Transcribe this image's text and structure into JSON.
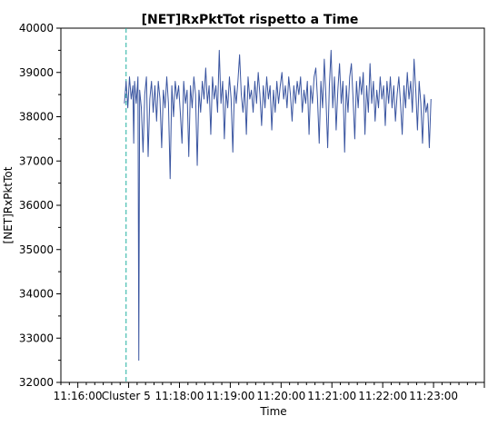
{
  "chart_data": {
    "type": "line",
    "title": "[NET]RxPktTot rispetto a Time",
    "xlabel": "Time",
    "ylabel": "[NET]RxPktTot",
    "ylim": [
      32000,
      40000
    ],
    "xlim": [
      "11:15:40",
      "11:24:00"
    ],
    "y_ticks": [
      32000,
      33000,
      34000,
      35000,
      36000,
      37000,
      38000,
      39000,
      40000
    ],
    "x_ticks": [
      {
        "time": "11:16:00",
        "label": "11:16:00"
      },
      {
        "time": "11:18:00",
        "label": "11:18:00"
      },
      {
        "time": "11:19:00",
        "label": "11:19:00"
      },
      {
        "time": "11:20:00",
        "label": "11:20:00"
      },
      {
        "time": "11:21:00",
        "label": "11:21:00"
      },
      {
        "time": "11:22:00",
        "label": "11:22:00"
      },
      {
        "time": "11:23:00",
        "label": "11:23:00"
      }
    ],
    "grid": false,
    "legend": "none",
    "marker": {
      "time": "11:16:57",
      "label": "Cluster 5",
      "color": "#20b0a0",
      "style": "dashed"
    },
    "series": [
      {
        "color": "#3a55a0",
        "x_start": "11:16:55",
        "x_end": "11:22:57",
        "points": [
          [
            0,
            38300
          ],
          [
            2,
            38800
          ],
          [
            4,
            38200
          ],
          [
            6,
            38900
          ],
          [
            8,
            38400
          ],
          [
            10,
            38700
          ],
          [
            11,
            37400
          ],
          [
            12,
            38800
          ],
          [
            14,
            38300
          ],
          [
            16,
            38900
          ],
          [
            17,
            32500
          ],
          [
            18,
            38600
          ],
          [
            20,
            38200
          ],
          [
            22,
            37200
          ],
          [
            24,
            38500
          ],
          [
            26,
            38900
          ],
          [
            28,
            37100
          ],
          [
            30,
            38400
          ],
          [
            32,
            38800
          ],
          [
            34,
            38100
          ],
          [
            36,
            38700
          ],
          [
            38,
            37900
          ],
          [
            40,
            38800
          ],
          [
            42,
            38400
          ],
          [
            44,
            37300
          ],
          [
            46,
            38600
          ],
          [
            48,
            38200
          ],
          [
            50,
            38900
          ],
          [
            52,
            38300
          ],
          [
            54,
            36600
          ],
          [
            56,
            38700
          ],
          [
            58,
            38000
          ],
          [
            60,
            38800
          ],
          [
            62,
            38400
          ],
          [
            64,
            38700
          ],
          [
            66,
            38100
          ],
          [
            68,
            37400
          ],
          [
            70,
            38800
          ],
          [
            72,
            38300
          ],
          [
            74,
            38600
          ],
          [
            76,
            37100
          ],
          [
            78,
            38700
          ],
          [
            80,
            38200
          ],
          [
            82,
            38900
          ],
          [
            84,
            38500
          ],
          [
            86,
            36900
          ],
          [
            88,
            38600
          ],
          [
            90,
            38100
          ],
          [
            92,
            38800
          ],
          [
            94,
            38400
          ],
          [
            96,
            39100
          ],
          [
            98,
            38300
          ],
          [
            100,
            38700
          ],
          [
            102,
            37600
          ],
          [
            104,
            38900
          ],
          [
            106,
            38400
          ],
          [
            108,
            38700
          ],
          [
            110,
            38100
          ],
          [
            112,
            39500
          ],
          [
            114,
            38300
          ],
          [
            116,
            38800
          ],
          [
            118,
            37500
          ],
          [
            120,
            38600
          ],
          [
            122,
            38200
          ],
          [
            124,
            38900
          ],
          [
            126,
            38400
          ],
          [
            128,
            37200
          ],
          [
            130,
            38700
          ],
          [
            132,
            38300
          ],
          [
            134,
            38800
          ],
          [
            136,
            39400
          ],
          [
            138,
            38500
          ],
          [
            140,
            38100
          ],
          [
            142,
            38700
          ],
          [
            144,
            37600
          ],
          [
            146,
            38900
          ],
          [
            148,
            38400
          ],
          [
            150,
            38600
          ],
          [
            152,
            38100
          ],
          [
            154,
            38800
          ],
          [
            156,
            38300
          ],
          [
            158,
            39000
          ],
          [
            160,
            38500
          ],
          [
            162,
            37800
          ],
          [
            164,
            38700
          ],
          [
            166,
            38200
          ],
          [
            168,
            38900
          ],
          [
            170,
            38400
          ],
          [
            172,
            38700
          ],
          [
            174,
            37700
          ],
          [
            176,
            38600
          ],
          [
            178,
            38100
          ],
          [
            180,
            38800
          ],
          [
            182,
            38300
          ],
          [
            184,
            38700
          ],
          [
            186,
            39000
          ],
          [
            188,
            38400
          ],
          [
            190,
            38700
          ],
          [
            192,
            38200
          ],
          [
            194,
            38900
          ],
          [
            196,
            38500
          ],
          [
            198,
            37900
          ],
          [
            200,
            38700
          ],
          [
            202,
            38300
          ],
          [
            204,
            38800
          ],
          [
            206,
            38500
          ],
          [
            208,
            38900
          ],
          [
            210,
            38100
          ],
          [
            212,
            38600
          ],
          [
            214,
            38300
          ],
          [
            216,
            38800
          ],
          [
            218,
            37600
          ],
          [
            220,
            38700
          ],
          [
            222,
            38300
          ],
          [
            224,
            38900
          ],
          [
            226,
            39100
          ],
          [
            228,
            38400
          ],
          [
            230,
            37400
          ],
          [
            232,
            38800
          ],
          [
            234,
            38200
          ],
          [
            236,
            39300
          ],
          [
            238,
            38400
          ],
          [
            240,
            37300
          ],
          [
            242,
            38700
          ],
          [
            244,
            39500
          ],
          [
            246,
            38200
          ],
          [
            248,
            38900
          ],
          [
            250,
            37700
          ],
          [
            252,
            38600
          ],
          [
            254,
            39200
          ],
          [
            256,
            38300
          ],
          [
            258,
            38800
          ],
          [
            260,
            37200
          ],
          [
            262,
            38700
          ],
          [
            264,
            38100
          ],
          [
            266,
            38900
          ],
          [
            268,
            39200
          ],
          [
            270,
            38400
          ],
          [
            272,
            37500
          ],
          [
            274,
            38800
          ],
          [
            276,
            38200
          ],
          [
            278,
            38900
          ],
          [
            280,
            38500
          ],
          [
            282,
            39000
          ],
          [
            284,
            37600
          ],
          [
            286,
            38700
          ],
          [
            288,
            38100
          ],
          [
            290,
            39200
          ],
          [
            292,
            38300
          ],
          [
            294,
            38800
          ],
          [
            296,
            37900
          ],
          [
            298,
            38600
          ],
          [
            300,
            38200
          ],
          [
            302,
            38900
          ],
          [
            304,
            38400
          ],
          [
            306,
            38700
          ],
          [
            308,
            37800
          ],
          [
            310,
            38800
          ],
          [
            312,
            38300
          ],
          [
            314,
            38900
          ],
          [
            316,
            38200
          ],
          [
            318,
            38700
          ],
          [
            320,
            37900
          ],
          [
            322,
            38500
          ],
          [
            324,
            38900
          ],
          [
            326,
            38300
          ],
          [
            328,
            37600
          ],
          [
            330,
            38700
          ],
          [
            332,
            38200
          ],
          [
            334,
            39000
          ],
          [
            336,
            38400
          ],
          [
            338,
            38800
          ],
          [
            340,
            38100
          ],
          [
            342,
            39300
          ],
          [
            344,
            38600
          ],
          [
            346,
            37700
          ],
          [
            348,
            38800
          ],
          [
            350,
            38300
          ],
          [
            352,
            37400
          ],
          [
            354,
            38500
          ],
          [
            356,
            38100
          ],
          [
            358,
            38300
          ],
          [
            360,
            37300
          ],
          [
            362,
            38400
          ]
        ]
      }
    ]
  }
}
